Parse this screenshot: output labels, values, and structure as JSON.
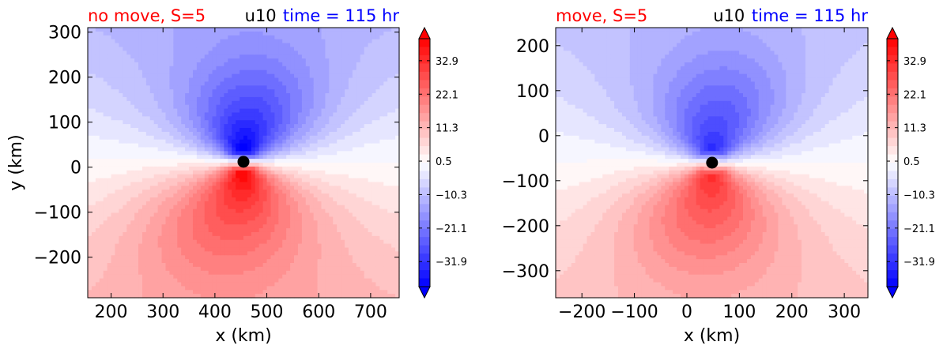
{
  "chart_data": [
    {
      "type": "heatmap",
      "title_left": "no move, S=5",
      "title_center": "u10",
      "title_right": "time = 115 hr",
      "xlabel": "x (km)",
      "ylabel": "y (km)",
      "xlim": [
        155,
        755
      ],
      "ylim": [
        -290,
        310
      ],
      "xticks": [
        200,
        300,
        400,
        500,
        600,
        700
      ],
      "yticks": [
        -200,
        -100,
        0,
        100,
        200,
        300
      ],
      "xtick_labels": [
        "200",
        "300",
        "400",
        "500",
        "600",
        "700"
      ],
      "ytick_labels": [
        "−200",
        "−100",
        "0",
        "100",
        "200",
        "300"
      ],
      "center_marker": {
        "x": 455,
        "y": 12
      },
      "colorbar": {
        "colormap": "bwr",
        "range": [
          -40,
          40
        ],
        "extend": "both",
        "tick_values": [
          32.9,
          22.1,
          11.3,
          0.5,
          -10.3,
          -21.1,
          -31.9
        ],
        "tick_labels": [
          "32.9",
          "22.1",
          "11.3",
          "0.5",
          "−10.3",
          "−21.1",
          "−31.9"
        ]
      },
      "field": {
        "blob_major": {
          "x": 495,
          "y": 140,
          "sx": 120,
          "sy": 130,
          "amp": -6
        },
        "blob_minor": {
          "x": 380,
          "y": -140,
          "sx": 160,
          "sy": 140,
          "amp": 6
        },
        "vortex": {
          "x": 455,
          "y": 12,
          "amp": 40,
          "r0": 25,
          "decay": 140
        },
        "background_gradient": 4.5
      }
    },
    {
      "type": "heatmap",
      "title_left": "move, S=5",
      "title_center": "u10",
      "title_right": "time = 115 hr",
      "xlabel": "x (km)",
      "ylabel": "",
      "xlim": [
        -250,
        345
      ],
      "ylim": [
        -360,
        240
      ],
      "xticks": [
        -200,
        -100,
        0,
        100,
        200,
        300
      ],
      "yticks": [
        -300,
        -200,
        -100,
        0,
        100,
        200
      ],
      "xtick_labels": [
        "−200",
        "−100",
        "0",
        "100",
        "200",
        "300"
      ],
      "ytick_labels": [
        "−300",
        "−200",
        "−100",
        "0",
        "100",
        "200"
      ],
      "center_marker": {
        "x": 48,
        "y": -60
      },
      "colorbar": {
        "colormap": "bwr",
        "range": [
          -40,
          40
        ],
        "extend": "both",
        "tick_values": [
          32.9,
          22.1,
          11.3,
          0.5,
          -10.3,
          -21.1,
          -31.9
        ],
        "tick_labels": [
          "32.9",
          "22.1",
          "11.3",
          "0.5",
          "−10.3",
          "−21.1",
          "−31.9"
        ]
      },
      "field": {
        "blob_major": {
          "x": 85,
          "y": 80,
          "sx": 120,
          "sy": 130,
          "amp": -6
        },
        "blob_minor": {
          "x": 20,
          "y": -200,
          "sx": 150,
          "sy": 130,
          "amp": 6
        },
        "vortex": {
          "x": 48,
          "y": -60,
          "amp": 32,
          "r0": 28,
          "decay": 150
        },
        "background_gradient": 3.5
      }
    }
  ]
}
